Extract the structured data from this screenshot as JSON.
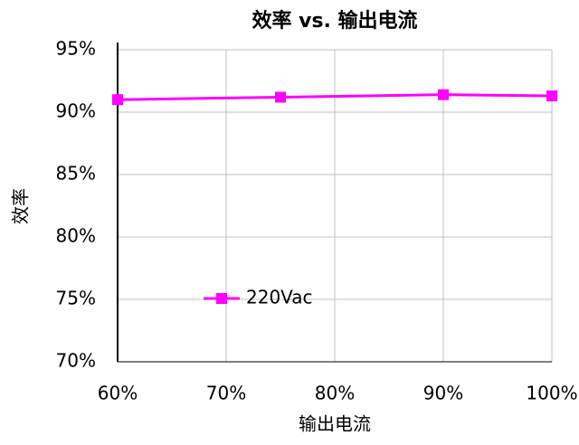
{
  "chart_data": {
    "type": "line",
    "title": "效率 vs. 输出电流",
    "x_label": "输出电流",
    "y_label": "效率",
    "x": [
      60,
      75,
      90,
      100
    ],
    "series": [
      {
        "name": "220Vac",
        "color": "#ff00ff",
        "values": [
          91,
          91.2,
          91.4,
          91.3
        ]
      }
    ],
    "xlim": [
      60,
      100
    ],
    "xticks": [
      {
        "value": 60,
        "label": "60%"
      },
      {
        "value": 70,
        "label": "70%"
      },
      {
        "value": 80,
        "label": "80%"
      },
      {
        "value": 90,
        "label": "90%"
      },
      {
        "value": 100,
        "label": "100%"
      }
    ],
    "ylim": [
      70,
      95
    ],
    "yticks": [
      {
        "value": 70,
        "label": "70%"
      },
      {
        "value": 75,
        "label": "75%"
      },
      {
        "value": 80,
        "label": "80%"
      },
      {
        "value": 85,
        "label": "85%"
      },
      {
        "value": 90,
        "label": "90%"
      },
      {
        "value": 95,
        "label": "95%"
      }
    ],
    "grid": true,
    "legend": "inside"
  }
}
